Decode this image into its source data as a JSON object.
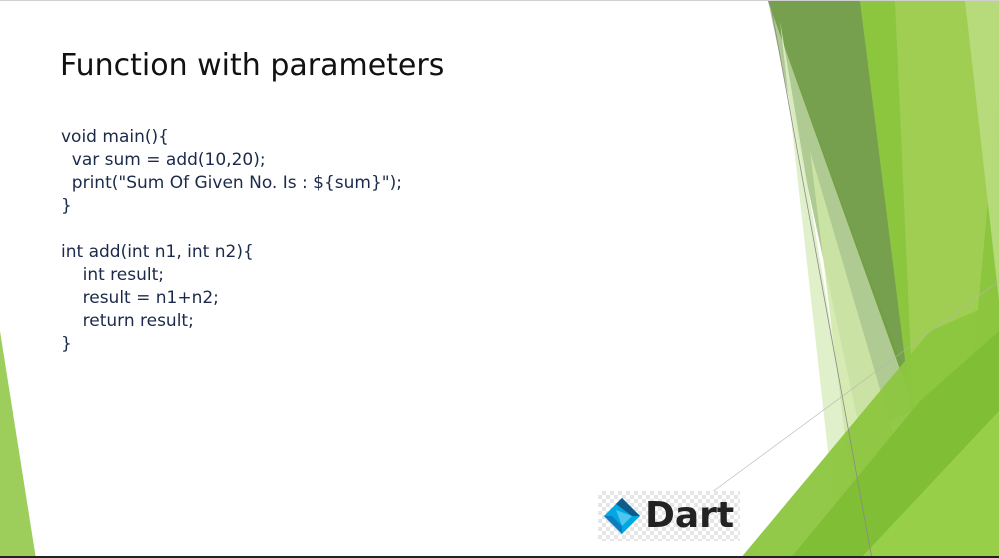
{
  "slide": {
    "title": "Function with parameters",
    "code_lines": [
      "void main(){",
      "  var sum = add(10,20);",
      "  print(\"Sum Of Given No. Is : ${sum}\");",
      "}",
      "",
      "int add(int n1, int n2){",
      "    int result;",
      "    result = n1+n2;",
      "    return result;",
      "}"
    ],
    "logo": {
      "text": "Dart",
      "icon": "dart-logo-icon"
    }
  },
  "colors": {
    "green_light": "#c9e29a",
    "green_mid": "#8cc63f",
    "green_dark": "#5e8a2e",
    "dart_blue": "#00a8e1",
    "dart_navy": "#0e5a8a",
    "text_code": "#1b2a4a",
    "text_title": "#111111"
  }
}
